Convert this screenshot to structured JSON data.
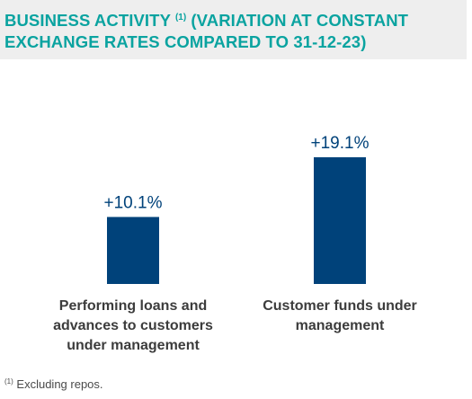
{
  "header": {
    "title_part1": "BUSINESS ACTIVITY",
    "title_sup": "(1)",
    "title_part2": "(VARIATION AT CONSTANT EXCHANGE RATES COMPARED TO 31-12-23)"
  },
  "colors": {
    "title": "#0aa3a0",
    "bar": "#00427a",
    "band": "#eeeeee"
  },
  "chart_data": {
    "type": "bar",
    "categories": [
      [
        "Performing loans and",
        "advances to customers",
        "under management"
      ],
      [
        "Customer funds under",
        "management"
      ]
    ],
    "values": [
      10.1,
      19.1
    ],
    "data_labels": [
      "+10.1%",
      "+19.1%"
    ],
    "ylim": [
      0,
      19.1
    ],
    "grid": false
  },
  "footnote": {
    "marker": "(1)",
    "text": "Excluding repos."
  }
}
